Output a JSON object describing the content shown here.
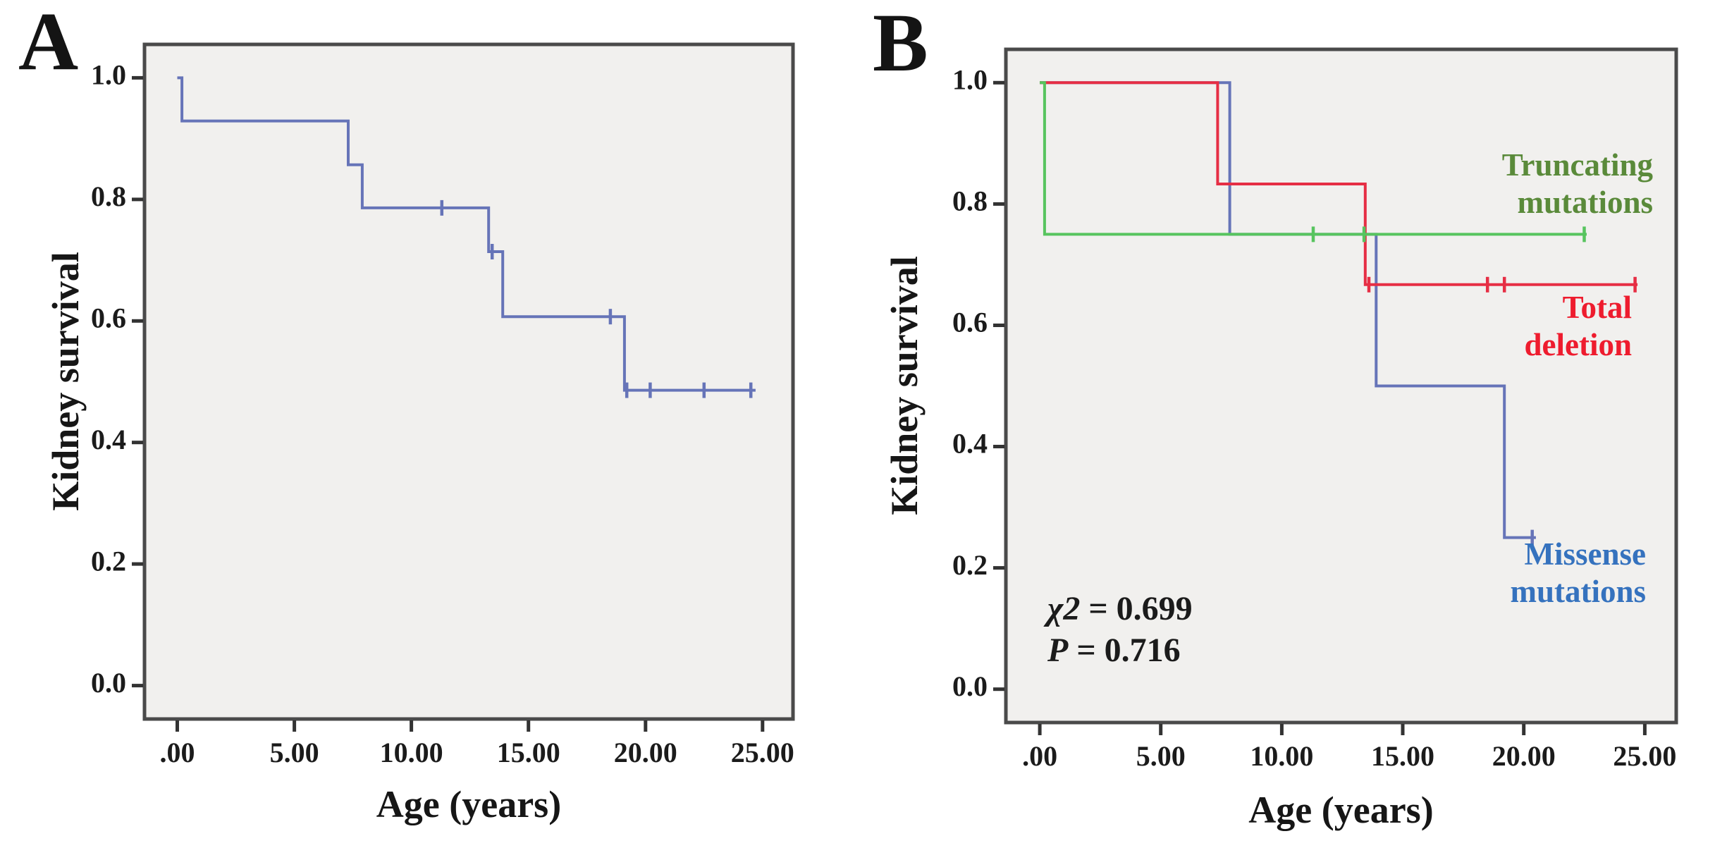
{
  "chart_data": [
    {
      "type": "line",
      "subtype": "kaplan-meier-step",
      "panel_label": "A",
      "title": "",
      "xlabel": "Age (years)",
      "ylabel": "Kidney survival",
      "xlim": [
        -1.4,
        26.3
      ],
      "ylim": [
        -0.055,
        1.055
      ],
      "x_ticks": [
        0,
        5,
        10,
        15,
        20,
        25
      ],
      "x_tick_labels": [
        ".00",
        "5.00",
        "10.00",
        "15.00",
        "20.00",
        "25.00"
      ],
      "y_ticks": [
        0,
        0.2,
        0.4,
        0.6,
        0.8,
        1.0
      ],
      "y_tick_labels": [
        "0.0",
        "0.2",
        "0.4",
        "0.6",
        "0.8",
        "1.0"
      ],
      "grid": false,
      "legend_position": "none",
      "plot_bg": "#f1f0ee",
      "frame_color": "#4a4a4a",
      "tick_color": "#333333",
      "text_color": "#1b1b1b",
      "series": [
        {
          "name": "kidney-survival",
          "color": "#6674b8",
          "steps": [
            [
              0,
              1.0
            ],
            [
              0.2,
              0.929
            ],
            [
              7.3,
              0.857
            ],
            [
              7.9,
              0.786
            ],
            [
              13.3,
              0.714
            ],
            [
              13.9,
              0.607
            ],
            [
              19.1,
              0.486
            ]
          ],
          "end_x": 24.7,
          "censors": [
            [
              11.3,
              0.786
            ],
            [
              13.45,
              0.714
            ],
            [
              18.5,
              0.607
            ],
            [
              19.2,
              0.486
            ],
            [
              20.2,
              0.486
            ],
            [
              22.5,
              0.486
            ],
            [
              24.5,
              0.486
            ]
          ]
        }
      ]
    },
    {
      "type": "line",
      "subtype": "kaplan-meier-step",
      "panel_label": "B",
      "title": "",
      "xlabel": "Age (years)",
      "ylabel": "Kidney survival",
      "xlim": [
        -1.4,
        26.3
      ],
      "ylim": [
        -0.055,
        1.055
      ],
      "x_ticks": [
        0,
        5,
        10,
        15,
        20,
        25
      ],
      "x_tick_labels": [
        ".00",
        "5.00",
        "10.00",
        "15.00",
        "20.00",
        "25.00"
      ],
      "y_ticks": [
        0,
        0.2,
        0.4,
        0.6,
        0.8,
        1.0
      ],
      "y_tick_labels": [
        "0.0",
        "0.2",
        "0.4",
        "0.6",
        "0.8",
        "1.0"
      ],
      "grid": false,
      "legend_position": "inline-labels",
      "plot_bg": "#f1f0ee",
      "frame_color": "#4a4a4a",
      "tick_color": "#333333",
      "text_color": "#1b1b1b",
      "series": [
        {
          "name": "Missense mutations",
          "color": "#6674b8",
          "steps": [
            [
              0,
              1.0
            ],
            [
              7.85,
              0.75
            ],
            [
              13.9,
              0.5
            ],
            [
              19.2,
              0.25
            ]
          ],
          "end_x": 20.5,
          "censors": [
            [
              20.35,
              0.25
            ]
          ]
        },
        {
          "name": "Total deletion",
          "color": "#e62e44",
          "steps": [
            [
              0,
              1.0
            ],
            [
              7.35,
              0.833
            ],
            [
              13.45,
              0.667
            ]
          ],
          "end_x": 24.7,
          "censors": [
            [
              13.6,
              0.667
            ],
            [
              18.5,
              0.667
            ],
            [
              19.2,
              0.667
            ],
            [
              24.6,
              0.667
            ]
          ]
        },
        {
          "name": "Truncating mutations",
          "color": "#57c45e",
          "steps": [
            [
              0,
              1.0
            ],
            [
              0.2,
              0.75
            ]
          ],
          "end_x": 22.6,
          "censors": [
            [
              11.3,
              0.75
            ],
            [
              13.4,
              0.75
            ],
            [
              22.5,
              0.75
            ]
          ]
        }
      ],
      "series_labels": [
        {
          "line1": "Truncating",
          "line2": "mutations",
          "color": "#5a8a3a"
        },
        {
          "line1": "Total",
          "line2": "deletion",
          "color": "#ee1c2e"
        },
        {
          "line1": "Missense",
          "line2": "mutations",
          "color": "#3572be"
        }
      ],
      "annotations": {
        "chi_sym": "χ2",
        "chi_rest": " = 0.699",
        "p_sym": "P",
        "p_rest": " = 0.716"
      }
    }
  ]
}
